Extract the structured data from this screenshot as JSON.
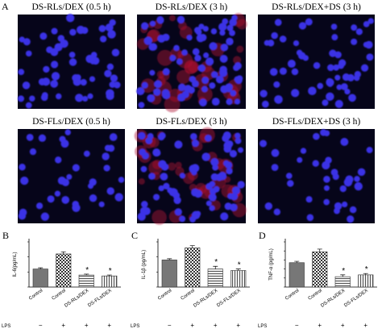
{
  "panel_a": {
    "label": "A",
    "images": [
      {
        "title": "DS-RLs/DEX (0.5 h)"
      },
      {
        "title": "DS-RLs/DEX (3 h)"
      },
      {
        "title": "DS-RLs/DEX+DS (3 h)"
      },
      {
        "title": "DS-FLs/DEX (0.5 h)"
      },
      {
        "title": "DS-FLs/DEX (3 h)"
      },
      {
        "title": "DS-FLs/DEX+DS (3 h)"
      }
    ]
  },
  "chart_data": [
    {
      "type": "bar",
      "label": "B",
      "ylabel": "IL-6(pg/mL)",
      "categories": [
        "Control",
        "Control",
        "DS-RLs/DEX",
        "DS-FLs/DEX"
      ],
      "values": [
        60,
        110,
        40,
        37
      ],
      "errors": [
        4,
        7,
        3,
        3
      ],
      "annotations": [
        null,
        null,
        "*",
        "*"
      ],
      "patterns": [
        "solid",
        "checker",
        "hstripe",
        "vstripe"
      ],
      "color": "#777777",
      "ylim": [
        0,
        150
      ],
      "yticks": [
        0,
        50,
        100,
        150
      ],
      "row_label": "LPS",
      "row_values": [
        "−",
        "+",
        "+",
        "+"
      ]
    },
    {
      "type": "bar",
      "label": "C",
      "ylabel": "IL-1β (pg/mL)",
      "categories": [
        "Control",
        "Control",
        "DS-RLs/DEX",
        "DS-FLs/DEX"
      ],
      "values": [
        180,
        260,
        120,
        110
      ],
      "errors": [
        8,
        15,
        18,
        10
      ],
      "annotations": [
        null,
        null,
        "*",
        "*"
      ],
      "patterns": [
        "solid",
        "checker",
        "hstripe",
        "vstripe"
      ],
      "color": "#777777",
      "ylim": [
        0,
        300
      ],
      "yticks": [
        0,
        100,
        200,
        300
      ],
      "row_label": "LPS",
      "row_values": [
        "−",
        "+",
        "+",
        "+"
      ]
    },
    {
      "type": "bar",
      "label": "D",
      "ylabel": "TNF-α (pg/mL)",
      "categories": [
        "Control",
        "Control",
        "DS-RLs/DEX",
        "DS-FLs/DEX"
      ],
      "values": [
        270,
        390,
        115,
        135
      ],
      "errors": [
        15,
        30,
        20,
        15
      ],
      "annotations": [
        null,
        null,
        "*",
        "*"
      ],
      "patterns": [
        "solid",
        "checker",
        "hstripe",
        "vstripe"
      ],
      "color": "#777777",
      "ylim": [
        0,
        500
      ],
      "yticks": [
        0,
        100,
        200,
        300,
        400,
        500
      ],
      "row_label": "LPS",
      "row_values": [
        "−",
        "+",
        "+",
        "+"
      ]
    }
  ]
}
